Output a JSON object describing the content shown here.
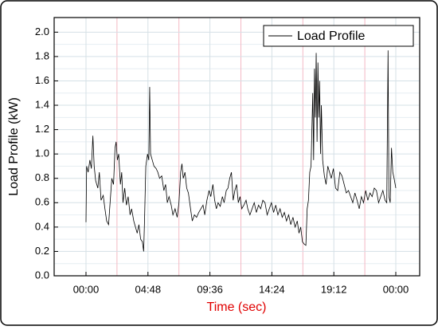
{
  "chart_data": {
    "type": "line",
    "xlabel": "Time (sec)",
    "ylabel": "Load Profile (kW)",
    "xlim": [
      -148,
      1551
    ],
    "xticks": [
      {
        "value": 0,
        "label": "00:00"
      },
      {
        "value": 288,
        "label": "04:48"
      },
      {
        "value": 576,
        "label": "09:36"
      },
      {
        "value": 864,
        "label": "14:24"
      },
      {
        "value": 1152,
        "label": "19:12"
      },
      {
        "value": 1440,
        "label": "00:00"
      }
    ],
    "ylim": [
      0,
      2.12
    ],
    "yticks": [
      {
        "value": 0,
        "label": "0.0"
      },
      0.2,
      0.4,
      0.6,
      0.8,
      {
        "value": 1,
        "label": "1.0"
      },
      1.2,
      1.4,
      1.6,
      1.8,
      {
        "value": 2,
        "label": "2.0"
      }
    ],
    "grid": true,
    "legend": "top right",
    "x": [
      0,
      3,
      10,
      18,
      25,
      32,
      38,
      45,
      55,
      62,
      70,
      80,
      88,
      96,
      105,
      112,
      120,
      128,
      135,
      140,
      146,
      152,
      160,
      166,
      172,
      180,
      188,
      196,
      205,
      212,
      222,
      230,
      238,
      246,
      254,
      262,
      268,
      272,
      278,
      286,
      292,
      296,
      300,
      308,
      316,
      326,
      334,
      342,
      352,
      362,
      370,
      378,
      386,
      396,
      404,
      414,
      424,
      432,
      440,
      446,
      452,
      460,
      468,
      476,
      486,
      494,
      504,
      514,
      524,
      534,
      544,
      552,
      562,
      572,
      580,
      590,
      598,
      606,
      614,
      624,
      634,
      642,
      652,
      660,
      668,
      676,
      684,
      692,
      700,
      708,
      716,
      724,
      734,
      744,
      752,
      762,
      772,
      782,
      792,
      802,
      812,
      822,
      832,
      842,
      852,
      862,
      872,
      882,
      892,
      902,
      912,
      922,
      932,
      942,
      952,
      962,
      972,
      982,
      990,
      998,
      1006,
      1014,
      1022,
      1028,
      1034,
      1040,
      1046,
      1050,
      1054,
      1058,
      1062,
      1066,
      1070,
      1074,
      1078,
      1082,
      1086,
      1090,
      1094,
      1100,
      1108,
      1116,
      1124,
      1132,
      1140,
      1150,
      1160,
      1170,
      1180,
      1190,
      1200,
      1210,
      1220,
      1230,
      1240,
      1250,
      1260,
      1270,
      1280,
      1290,
      1300,
      1310,
      1320,
      1330,
      1340,
      1350,
      1360,
      1370,
      1380,
      1390,
      1398,
      1404,
      1408,
      1414,
      1420,
      1426,
      1432,
      1440
    ],
    "series": [
      {
        "name": "Load Profile",
        "color": "#000000",
        "values": [
          0.44,
          0.9,
          0.85,
          0.95,
          0.88,
          1.15,
          0.9,
          0.78,
          0.72,
          0.85,
          0.62,
          0.66,
          0.55,
          0.45,
          0.42,
          0.6,
          0.8,
          0.75,
          1.05,
          1.1,
          0.95,
          1.0,
          0.75,
          0.85,
          0.6,
          0.72,
          0.58,
          0.65,
          0.5,
          0.55,
          0.45,
          0.4,
          0.35,
          0.42,
          0.3,
          0.28,
          0.2,
          0.45,
          0.9,
          1.0,
          0.95,
          1.55,
          1.0,
          0.95,
          0.9,
          0.88,
          0.85,
          0.8,
          0.82,
          0.7,
          0.75,
          0.6,
          0.65,
          0.58,
          0.5,
          0.55,
          0.48,
          0.6,
          0.85,
          0.92,
          0.8,
          0.85,
          0.72,
          0.68,
          0.55,
          0.45,
          0.5,
          0.48,
          0.52,
          0.55,
          0.58,
          0.5,
          0.62,
          0.7,
          0.65,
          0.75,
          0.62,
          0.55,
          0.6,
          0.57,
          0.65,
          0.6,
          0.7,
          0.72,
          0.8,
          0.85,
          0.62,
          0.7,
          0.75,
          0.6,
          0.65,
          0.55,
          0.58,
          0.62,
          0.55,
          0.5,
          0.55,
          0.6,
          0.52,
          0.58,
          0.55,
          0.62,
          0.6,
          0.5,
          0.55,
          0.6,
          0.52,
          0.58,
          0.5,
          0.55,
          0.48,
          0.52,
          0.45,
          0.5,
          0.42,
          0.48,
          0.4,
          0.45,
          0.35,
          0.4,
          0.28,
          0.26,
          0.25,
          0.55,
          0.62,
          0.85,
          0.9,
          1.2,
          1.5,
          0.95,
          1.7,
          1.3,
          1.83,
          1.1,
          1.75,
          1.3,
          1.6,
          1.0,
          1.4,
          0.95,
          0.82,
          0.75,
          0.9,
          0.85,
          0.8,
          0.88,
          0.72,
          0.7,
          0.85,
          0.82,
          0.75,
          0.68,
          0.7,
          0.65,
          0.6,
          0.68,
          0.62,
          0.55,
          0.65,
          0.6,
          0.7,
          0.62,
          0.68,
          0.65,
          0.72,
          0.7,
          0.6,
          0.65,
          0.7,
          0.62,
          0.6,
          1.85,
          0.65,
          0.6,
          1.05,
          0.85,
          0.8,
          0.72
        ]
      }
    ]
  }
}
